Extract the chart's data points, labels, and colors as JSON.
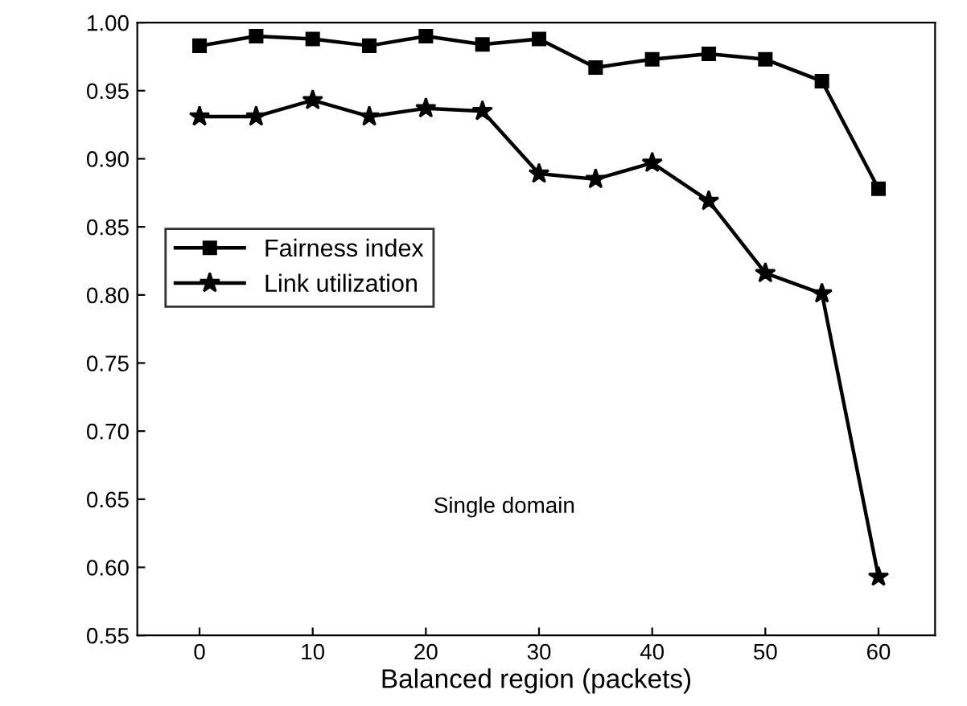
{
  "chart_data": {
    "type": "line",
    "xlabel": "Balanced region (packets)",
    "x": [
      0,
      5,
      10,
      15,
      20,
      25,
      30,
      35,
      40,
      45,
      50,
      55,
      60
    ],
    "series": [
      {
        "name": "Fairness index",
        "color": "#000000",
        "marker": "square",
        "values": [
          0.983,
          0.99,
          0.988,
          0.983,
          0.99,
          0.984,
          0.988,
          0.967,
          0.973,
          0.977,
          0.973,
          0.957,
          0.878
        ]
      },
      {
        "name": "Link utilization",
        "color": "#000000",
        "marker": "star",
        "values": [
          0.931,
          0.931,
          0.943,
          0.931,
          0.937,
          0.935,
          0.889,
          0.885,
          0.897,
          0.869,
          0.816,
          0.801,
          0.593
        ]
      }
    ],
    "xlim": [
      -5.5,
      65
    ],
    "xticks": [
      0,
      10,
      20,
      30,
      40,
      50,
      60
    ],
    "ylim": [
      0.55,
      1.0
    ],
    "yticks": [
      {
        "value": 0.55,
        "label": "0.55"
      },
      {
        "value": 0.6,
        "label": "0.60"
      },
      {
        "value": 0.65,
        "label": "0.65"
      },
      {
        "value": 0.7,
        "label": "0.70"
      },
      {
        "value": 0.75,
        "label": "0.75"
      },
      {
        "value": 0.8,
        "label": "0.80"
      },
      {
        "value": 0.85,
        "label": "0.85"
      },
      {
        "value": 0.9,
        "label": "0.90"
      },
      {
        "value": 0.95,
        "label": "0.95"
      },
      {
        "value": 1.0,
        "label": "1.00"
      }
    ],
    "annotations": [
      "Single domain"
    ],
    "legend": "left",
    "grid": false,
    "line_style": "solid"
  }
}
